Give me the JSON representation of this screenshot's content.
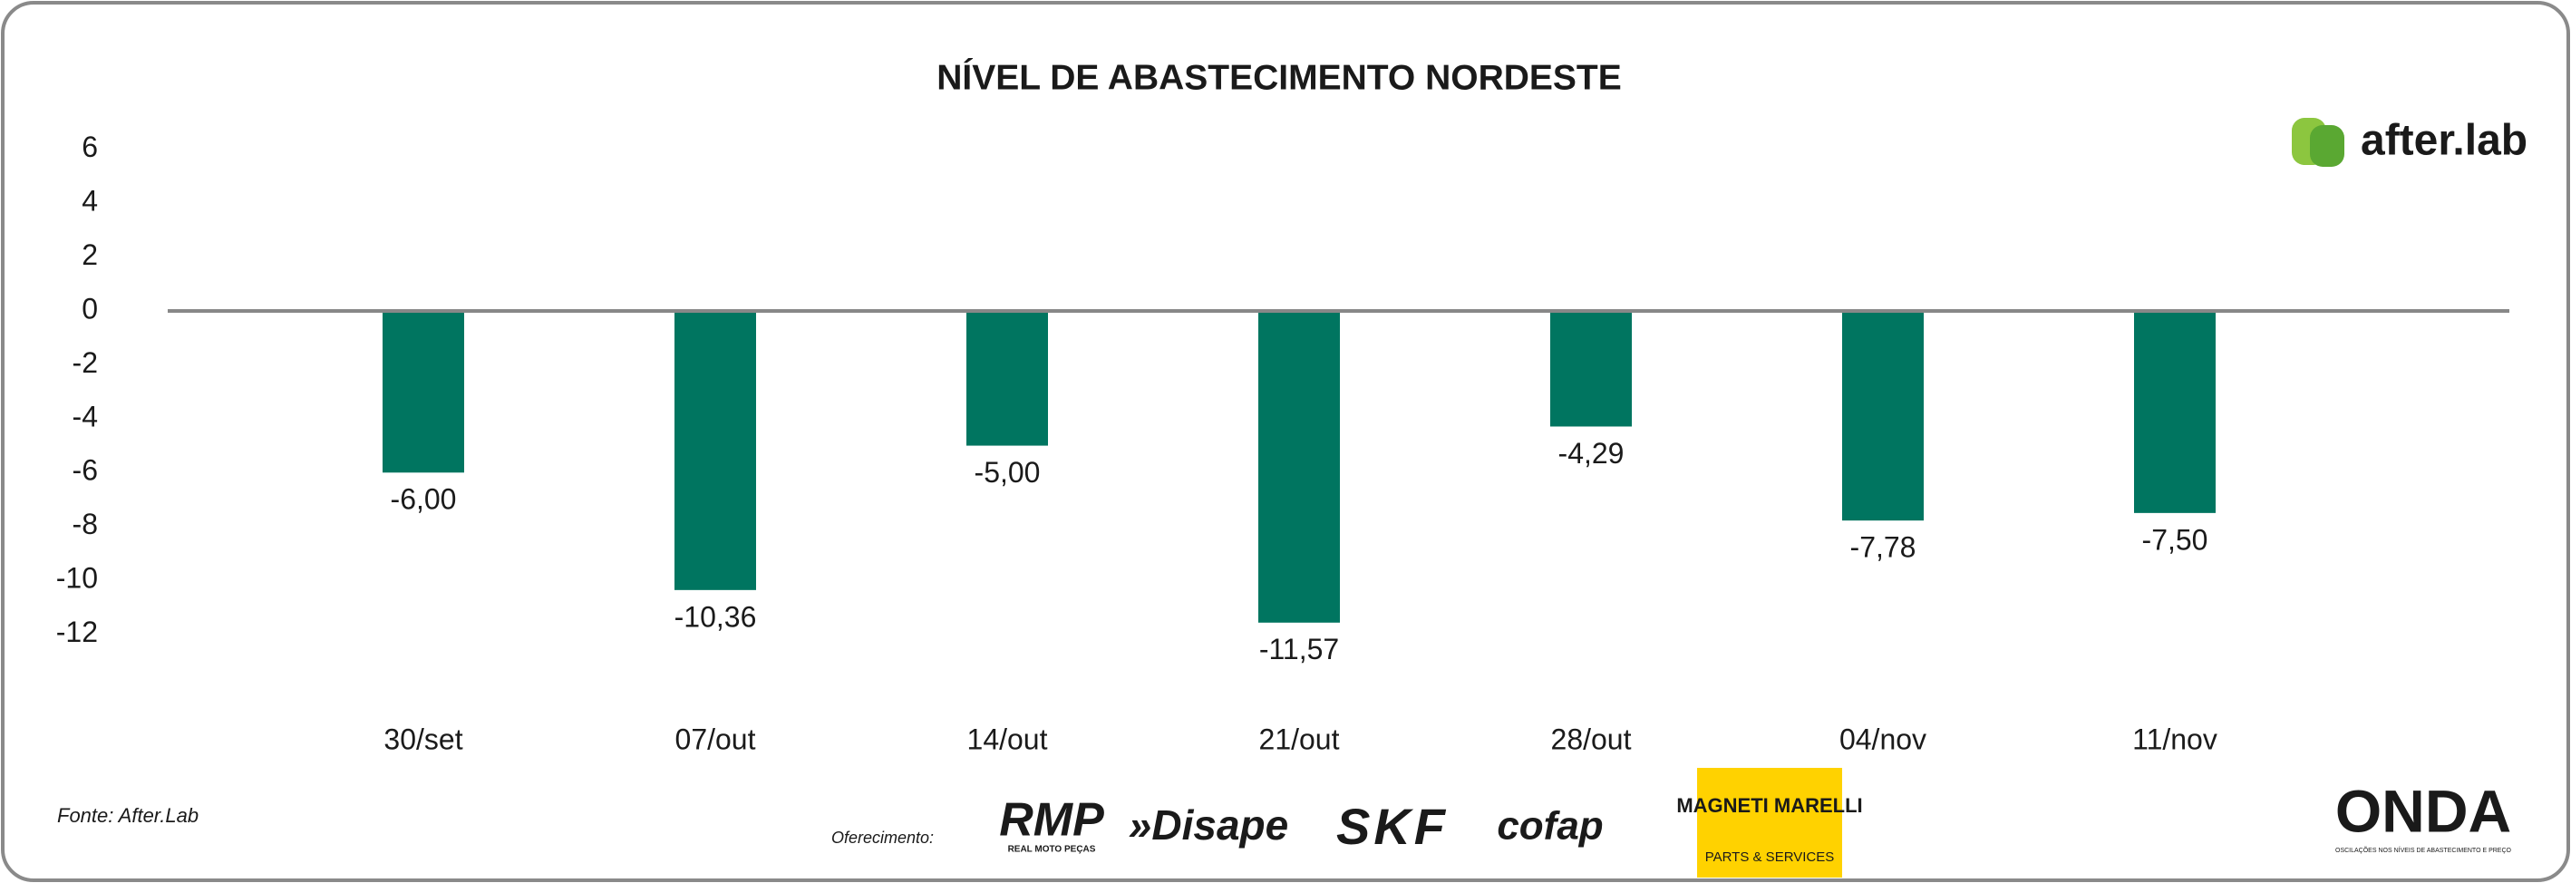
{
  "chart_data": {
    "type": "bar",
    "title": "NÍVEL DE ABASTECIMENTO NORDESTE",
    "categories": [
      "30/set",
      "07/out",
      "14/out",
      "21/out",
      "28/out",
      "04/nov",
      "11/nov"
    ],
    "values": [
      -6,
      -10.36,
      -5,
      -11.57,
      -4.29,
      -7.78,
      -7.5
    ],
    "value_labels": [
      "-6,00",
      "-10,36",
      "-5,00",
      "-11,57",
      "-4,29",
      "-7,78",
      "-7,50"
    ],
    "color": "#007560",
    "ylim": [
      -14,
      7
    ],
    "yticks": [
      6,
      4,
      2,
      0,
      -2,
      -4,
      -6,
      -8,
      -10,
      -12
    ],
    "grid": false
  },
  "footer": {
    "source": "Fonte: After.Lab",
    "sponsor_label": "Oferecimento:",
    "sponsors": [
      "RMP",
      "REAL MOTO PEÇAS",
      "»Disape",
      "SKF",
      "cofap",
      "MAGNETI MARELLI",
      "PARTS & SERVICES"
    ],
    "brand": "after.lab",
    "partner": "ONDA",
    "partner_tagline": "OSCILAÇÕES NOS NÍVEIS DE ABASTECIMENTO E PREÇO"
  }
}
